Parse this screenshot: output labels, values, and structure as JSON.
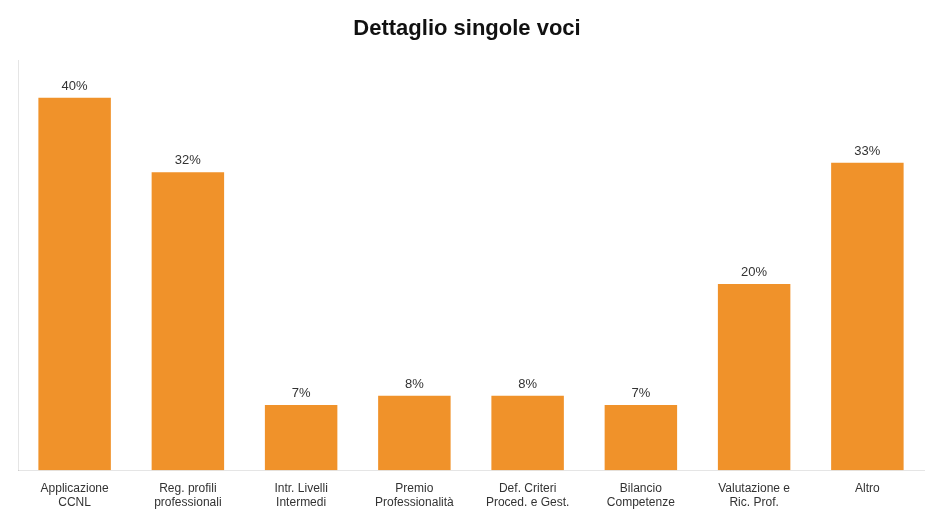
{
  "chart_data": {
    "type": "bar",
    "title": "Dettaglio singole voci",
    "categories": [
      "Applicazione\nCCNL",
      "Reg. profili\nprofessionali",
      "Intr. Livelli\nIntermedi",
      "Premio\nProfessionalità",
      "Def. Criteri\nProced. e Gest.",
      "Bilancio\nCompetenze",
      "Valutazione e\nRic. Prof.",
      "Altro"
    ],
    "values": [
      40,
      32,
      7,
      8,
      8,
      7,
      20,
      33
    ],
    "value_labels": [
      "40%",
      "32%",
      "7%",
      "8%",
      "8%",
      "7%",
      "20%",
      "33%"
    ],
    "color": "#F0922A",
    "ylim": [
      0,
      44
    ],
    "data_labels": true,
    "tick_labels": "x",
    "grid": false
  }
}
